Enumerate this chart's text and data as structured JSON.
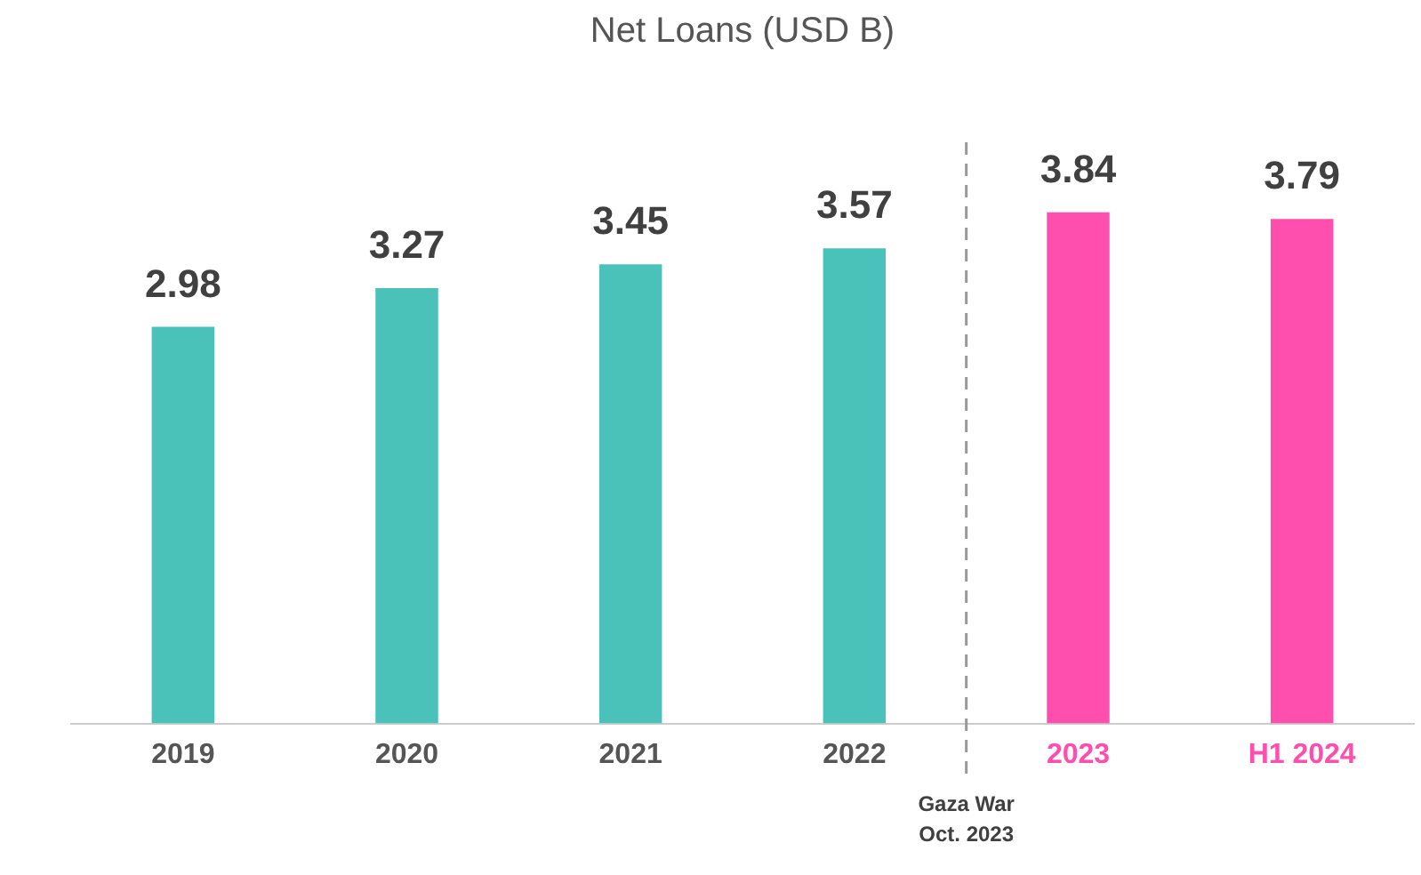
{
  "chart_data": {
    "type": "bar",
    "title": "Net Loans (USD B)",
    "categories": [
      "2019",
      "2020",
      "2021",
      "2022",
      "2023",
      "H1 2024"
    ],
    "values": [
      2.98,
      3.27,
      3.45,
      3.57,
      3.84,
      3.79
    ],
    "colors": [
      "#4bc2b9",
      "#4bc2b9",
      "#4bc2b9",
      "#4bc2b9",
      "#ff4fae",
      "#ff4fae"
    ],
    "data_labels": true,
    "tick_labels": "x",
    "grid": false,
    "legend": false,
    "annotations": [
      "Gaza War\nOct. 2023"
    ]
  }
}
